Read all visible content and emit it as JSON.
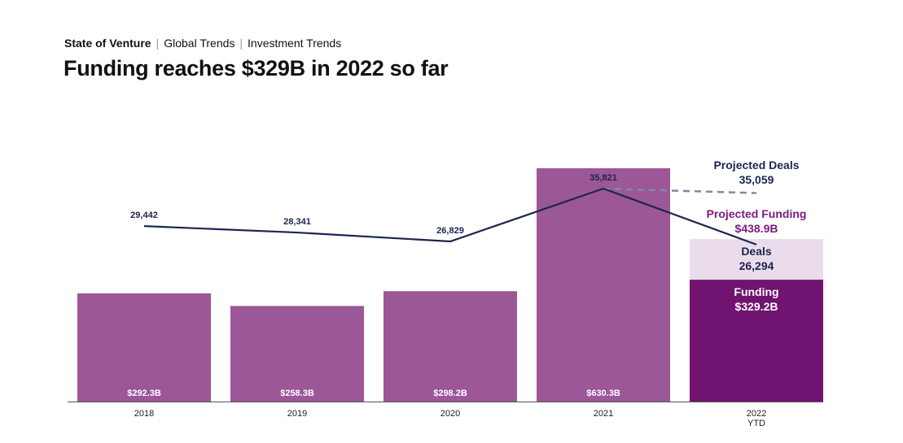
{
  "breadcrumb": {
    "items": [
      "State of Venture",
      "Global Trends",
      "Investment Trends"
    ]
  },
  "title": "Funding reaches $329B in 2022 so far",
  "colors": {
    "bar": "#9b5797",
    "bar_current": "#711370",
    "bar_projected": "#ebdcec",
    "deals_line": "#1b2550",
    "projected_line": "#7f8aa3",
    "axis": "#555555"
  },
  "chart_data": {
    "type": "bar",
    "categories": [
      "2018",
      "2019",
      "2020",
      "2021",
      "2022\nYTD"
    ],
    "series": [
      {
        "type": "bar",
        "values": [
          292.3,
          258.3,
          298.2,
          630.3,
          329.2
        ],
        "labels": [
          "$292.3B",
          "$258.3B",
          "$298.2B",
          "$630.3B",
          ""
        ]
      },
      {
        "type": "line",
        "values": [
          29442,
          28341,
          26829,
          35821,
          26294
        ],
        "labels": [
          "29,442",
          "28,341",
          "26,829",
          "35,821",
          ""
        ]
      }
    ],
    "projected": {
      "funding": 438.9,
      "deals": 35059
    },
    "annotations": {
      "projected_deals_title": "Projected Deals",
      "projected_deals_value": "35,059",
      "projected_funding_title": "Projected Funding",
      "projected_funding_value": "$438.9B",
      "deals_title": "Deals",
      "deals_value": "26,294",
      "funding_title": "Funding",
      "funding_value": "$329.2B"
    },
    "ylim_funding": [
      0,
      630.3
    ],
    "grid": false,
    "legend": "none"
  }
}
